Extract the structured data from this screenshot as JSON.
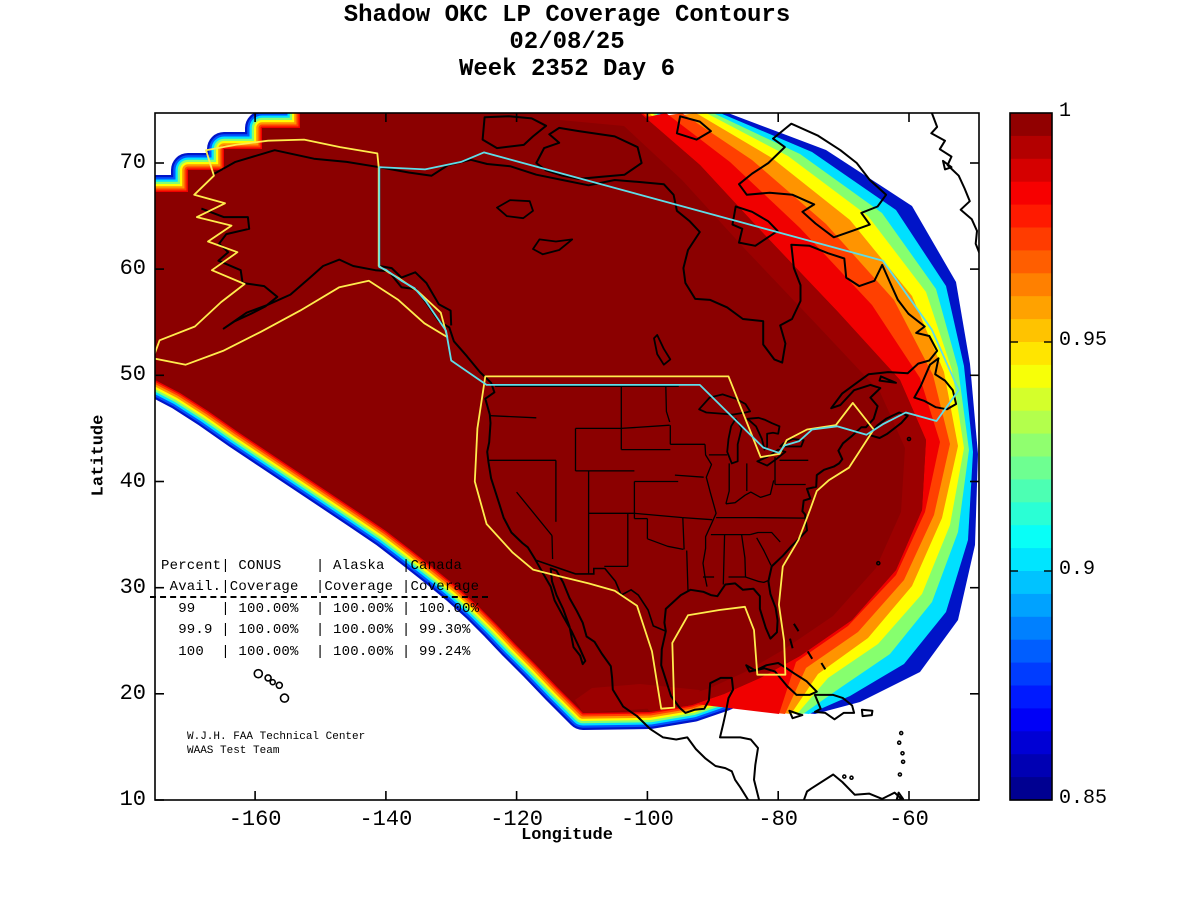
{
  "title": {
    "line1": "Shadow OKC LP Coverage Contours",
    "line2": "02/08/25",
    "line3": "Week 2352 Day 6"
  },
  "axes": {
    "xlabel": "Longitude",
    "ylabel": "Latitude",
    "x_ticks": [
      "-160",
      "-140",
      "-120",
      "-100",
      "-80",
      "-60"
    ],
    "x_tick_lons": [
      -160,
      -140,
      -120,
      -100,
      -80,
      -60
    ],
    "y_ticks": [
      "70",
      "60",
      "50",
      "40",
      "30",
      "20",
      "10"
    ],
    "y_tick_lats": [
      70,
      60,
      50,
      40,
      30,
      20,
      10
    ],
    "x_range_lon": [
      -175.3,
      -49.0
    ],
    "y_range_lat": [
      10,
      74.7
    ]
  },
  "colorbar": {
    "labels": [
      "1",
      "0.95",
      "0.9",
      "0.85"
    ],
    "values": [
      1,
      0.95,
      0.9,
      0.85
    ],
    "min": 0.85,
    "max": 1,
    "colormap": "jet"
  },
  "stats_table": {
    "lines": [
      "Percent| CONUS    | Alaska  |Canada",
      " Avail.|Coverage  |Coverage |Coverage",
      "  99   | 100.00%  | 100.00% | 100.00%",
      "  99.9 | 100.00%  | 100.00% | 99.30%",
      "  100  | 100.00%  | 100.00% | 99.24%"
    ]
  },
  "attribution": {
    "line1": "W.J.H. FAA Technical Center",
    "line2": "WAAS Test Team"
  },
  "colors": {
    "coverage_full": "#8b0000",
    "coverage_second": "#9c0000",
    "fringe": [
      "#f00000",
      "#ff4000",
      "#ff9400",
      "#ffff00",
      "#86ff6e",
      "#00e0ff",
      "#0055ff",
      "#0014c8"
    ],
    "boundary_conus_alaska": "#ffec4d",
    "boundary_canada": "#5fdde8",
    "coastline": "#000000"
  },
  "chart_data": {
    "type": "heatmap",
    "title": "Shadow OKC LP Coverage Contours",
    "subtitle_date": "02/08/25",
    "subtitle_week": "Week 2352 Day 6",
    "xlabel": "Longitude",
    "ylabel": "Latitude",
    "x_ticks": [
      -160,
      -140,
      -120,
      -100,
      -80,
      -60
    ],
    "y_ticks": [
      10,
      20,
      30,
      40,
      50,
      60,
      70
    ],
    "x_range": [
      -175.3,
      -49.0
    ],
    "y_range": [
      10,
      74.7
    ],
    "grid": false,
    "colorbar": {
      "min": 0.85,
      "max": 1,
      "tick_labels": [
        1,
        0.95,
        0.9,
        0.85
      ],
      "colormap": "jet",
      "position": "right"
    },
    "coverage_table": {
      "columns": [
        "Percent Avail.",
        "CONUS Coverage",
        "Alaska Coverage",
        "Canada Coverage"
      ],
      "rows": [
        [
          "99",
          "100.00%",
          "100.00%",
          "100.00%"
        ],
        [
          "99.9",
          "100.00%",
          "100.00%",
          "99.30%"
        ],
        [
          "100",
          "100.00%",
          "100.00%",
          "99.24%"
        ]
      ]
    },
    "summary": "Availability contour map: value 1.0 (dark red) covers CONUS, Alaska, Mexico and most of Canada; jet-colormap fringe bands (red to blue, 1.0 down to 0.85) along the northeast (Baffin/Greenland), Pacific southwest and Caribbean southeast edges; no coverage (white) beyond."
  }
}
